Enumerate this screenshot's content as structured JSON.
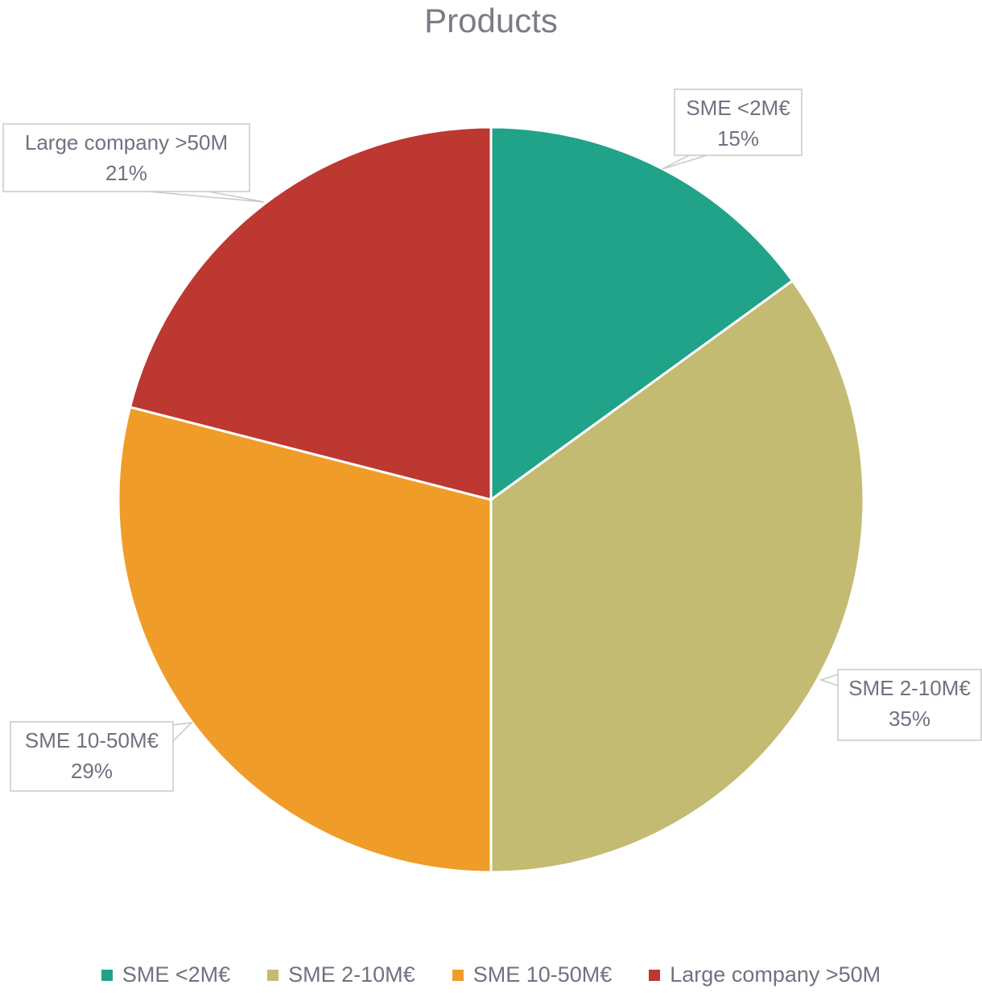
{
  "chart_data": {
    "type": "pie",
    "title": "Products",
    "slices": [
      {
        "label": "SME <2M€",
        "value": 15,
        "percent_label": "15%",
        "color": "#20a388"
      },
      {
        "label": "SME 2-10M€",
        "value": 35,
        "percent_label": "35%",
        "color": "#c3bb72"
      },
      {
        "label": "SME 10-50M€",
        "value": 29,
        "percent_label": "29%",
        "color": "#f09c28"
      },
      {
        "label": "Large company  >50M",
        "value": 21,
        "percent_label": "21%",
        "color": "#bd3830"
      }
    ],
    "legend_position": "bottom",
    "start_angle": "12 o'clock",
    "direction": "clockwise"
  }
}
